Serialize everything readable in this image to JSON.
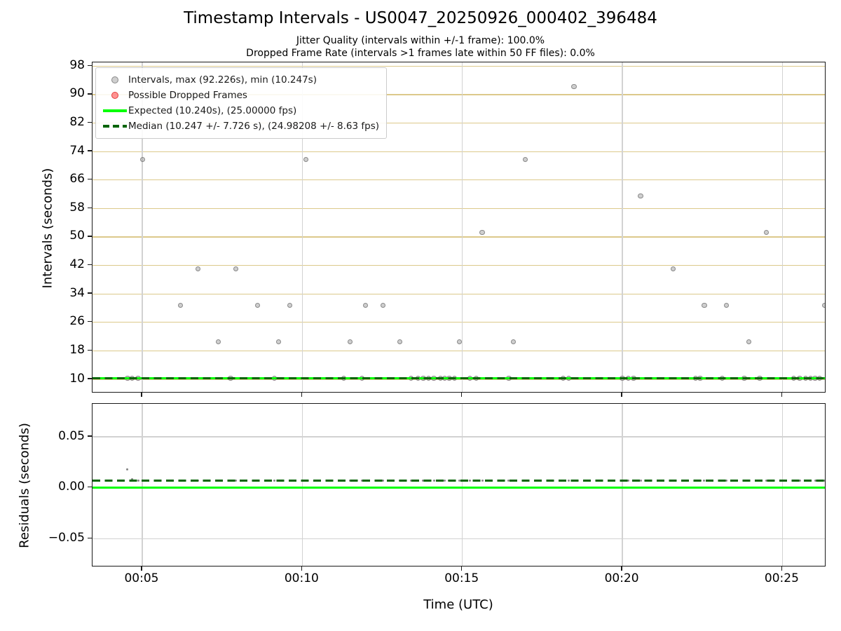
{
  "header": {
    "title": "Timestamp Intervals - US0047_20250926_000402_396484",
    "jitter_line": "Jitter Quality (intervals within +/-1 frame): 100.0%",
    "dropped_line": "Dropped Frame Rate (intervals >1 frames late within 50 FF files): 0.0%"
  },
  "axes": {
    "x_label": "Time (UTC)",
    "top_y_label": "Intervals (seconds)",
    "bottom_y_label": "Residuals (seconds)"
  },
  "colors": {
    "expected_line": "#00ff00",
    "median_line": "#006400",
    "grid_tan": "#dcc98b",
    "grid_gray": "#d2d2d2",
    "marker_fill": "rgba(160,160,160,0.5)",
    "marker_edge": "rgba(105,105,105,0.7)",
    "residual_dot": "rgba(110,110,110,0.85)",
    "dropped_fill": "rgba(255,60,60,0.55)",
    "dropped_edge": "rgba(220,40,40,0.8)"
  },
  "legend": {
    "entries": [
      {
        "marker": "dot-gray",
        "label": "Intervals, max (92.226s), min (10.247s)"
      },
      {
        "marker": "dot-red",
        "label": "Possible Dropped Frames"
      },
      {
        "marker": "line-solid",
        "label": "Expected (10.240s), (25.00000 fps)"
      },
      {
        "marker": "line-dash",
        "label": "Median (10.247 +/- 7.726 s), (24.98208 +/- 8.63 fps)"
      }
    ]
  },
  "chart_data": [
    {
      "type": "scatter",
      "name": "intervals",
      "ylabel": "Intervals (seconds)",
      "x_unit": "minutes after 00:00 UTC",
      "xlim": [
        3.446,
        26.37
      ],
      "ylim": [
        6.06,
        99.05
      ],
      "xticks": {
        "values": [
          5,
          10,
          15,
          20,
          25
        ],
        "labels": [
          "00:05",
          "00:10",
          "00:15",
          "00:20",
          "00:25"
        ]
      },
      "yticks": {
        "values": [
          10,
          18,
          26,
          34,
          42,
          50,
          58,
          66,
          74,
          82,
          90,
          98
        ],
        "labels": [
          "10",
          "18",
          "26",
          "34",
          "42",
          "50",
          "58",
          "66",
          "74",
          "82",
          "90",
          "98"
        ]
      },
      "groups": [
        {
          "value": 10.247,
          "times": [
            4.54,
            4.69,
            4.87,
            7.76,
            9.12,
            11.29,
            11.86,
            13.39,
            13.61,
            13.78,
            13.94,
            14.11,
            14.31,
            14.44,
            14.59,
            14.75,
            15.23,
            15.43,
            16.45,
            18.14,
            18.32,
            20.0,
            20.18,
            20.35,
            22.28,
            22.43,
            23.11,
            23.81,
            24.29,
            25.35,
            25.54,
            25.72,
            25.87,
            26.02,
            26.16
          ]
        },
        {
          "value": 20.494,
          "times": [
            7.37,
            9.26,
            11.49,
            13.04,
            14.91,
            16.6,
            23.95
          ]
        },
        {
          "value": 30.741,
          "times": [
            6.2,
            8.6,
            9.61,
            11.98,
            12.53,
            22.56,
            23.25,
            26.32
          ]
        },
        {
          "value": 40.988,
          "times": [
            6.75,
            7.93,
            21.58
          ]
        },
        {
          "value": 51.235,
          "times": [
            15.62,
            24.5
          ]
        },
        {
          "value": 61.482,
          "times": [
            20.57
          ]
        },
        {
          "value": 71.729,
          "times": [
            5.02,
            10.11,
            16.96
          ]
        },
        {
          "value": 92.226,
          "times": [
            18.49
          ]
        }
      ],
      "lines": [
        {
          "name": "expected",
          "value": 10.24,
          "style": "solid"
        },
        {
          "name": "median",
          "value": 10.247,
          "style": "dashed"
        }
      ],
      "stats": {
        "max_s": 92.226,
        "min_s": 10.247,
        "expected_s": 10.24,
        "expected_fps": 25.0,
        "median_s": 10.247,
        "median_sd_s": 7.726,
        "median_fps": 24.98208,
        "median_sd_fps": 8.63
      }
    },
    {
      "type": "scatter",
      "name": "residuals",
      "ylabel": "Residuals (seconds)",
      "x_unit": "minutes after 00:00 UTC",
      "xlim": [
        3.446,
        26.37
      ],
      "ylim": [
        -0.078,
        0.0824
      ],
      "xticks": {
        "values": [
          5,
          10,
          15,
          20,
          25
        ],
        "labels": [
          "00:05",
          "00:10",
          "00:15",
          "00:20",
          "00:25"
        ]
      },
      "yticks": {
        "values": [
          0.05,
          0.0,
          -0.05
        ],
        "labels": [
          "0.05",
          "0.00",
          "−0.05"
        ]
      },
      "points": [
        [
          4.54,
          0.0183
        ],
        [
          4.69,
          0.0087
        ],
        [
          4.87,
          0.0073
        ],
        [
          5.02,
          0.0073
        ],
        [
          6.2,
          0.0073
        ],
        [
          6.75,
          0.0073
        ],
        [
          7.37,
          0.0073
        ],
        [
          7.76,
          0.0073
        ],
        [
          7.93,
          0.0073
        ],
        [
          8.6,
          0.0073
        ],
        [
          9.12,
          0.0073
        ],
        [
          9.26,
          0.0073
        ],
        [
          9.61,
          0.0073
        ],
        [
          10.11,
          0.0073
        ],
        [
          11.29,
          0.0073
        ],
        [
          11.49,
          0.0073
        ],
        [
          11.86,
          0.0073
        ],
        [
          11.98,
          0.0073
        ],
        [
          12.53,
          0.0073
        ],
        [
          13.04,
          0.0073
        ],
        [
          13.39,
          0.0073
        ],
        [
          13.61,
          0.0073
        ],
        [
          13.78,
          0.0073
        ],
        [
          13.94,
          0.0073
        ],
        [
          14.11,
          0.0073
        ],
        [
          14.31,
          0.0073
        ],
        [
          14.44,
          0.0073
        ],
        [
          14.59,
          0.0073
        ],
        [
          14.75,
          0.0073
        ],
        [
          14.91,
          0.0073
        ],
        [
          15.23,
          0.0073
        ],
        [
          15.43,
          0.0073
        ],
        [
          15.62,
          0.0073
        ],
        [
          16.45,
          0.0073
        ],
        [
          16.6,
          0.0073
        ],
        [
          16.96,
          0.0073
        ],
        [
          18.14,
          0.0073
        ],
        [
          18.32,
          0.0073
        ],
        [
          18.49,
          0.0073
        ],
        [
          20.0,
          0.0073
        ],
        [
          20.18,
          0.0073
        ],
        [
          20.35,
          0.0073
        ],
        [
          20.57,
          0.0073
        ],
        [
          21.58,
          0.0073
        ],
        [
          22.28,
          0.0073
        ],
        [
          22.43,
          0.0073
        ],
        [
          22.56,
          0.0073
        ],
        [
          23.11,
          0.0073
        ],
        [
          23.25,
          0.0073
        ],
        [
          23.81,
          0.0073
        ],
        [
          23.95,
          0.0073
        ],
        [
          24.29,
          0.0073
        ],
        [
          24.5,
          0.0073
        ],
        [
          25.35,
          0.0073
        ],
        [
          25.54,
          0.0073
        ],
        [
          25.72,
          0.0073
        ],
        [
          25.87,
          0.0073
        ],
        [
          26.02,
          0.0073
        ],
        [
          26.16,
          0.0073
        ],
        [
          26.32,
          0.0073
        ]
      ],
      "lines": [
        {
          "name": "expected",
          "value": 0.0,
          "style": "solid"
        },
        {
          "name": "median",
          "value": 0.0073,
          "style": "dashed"
        }
      ]
    }
  ]
}
